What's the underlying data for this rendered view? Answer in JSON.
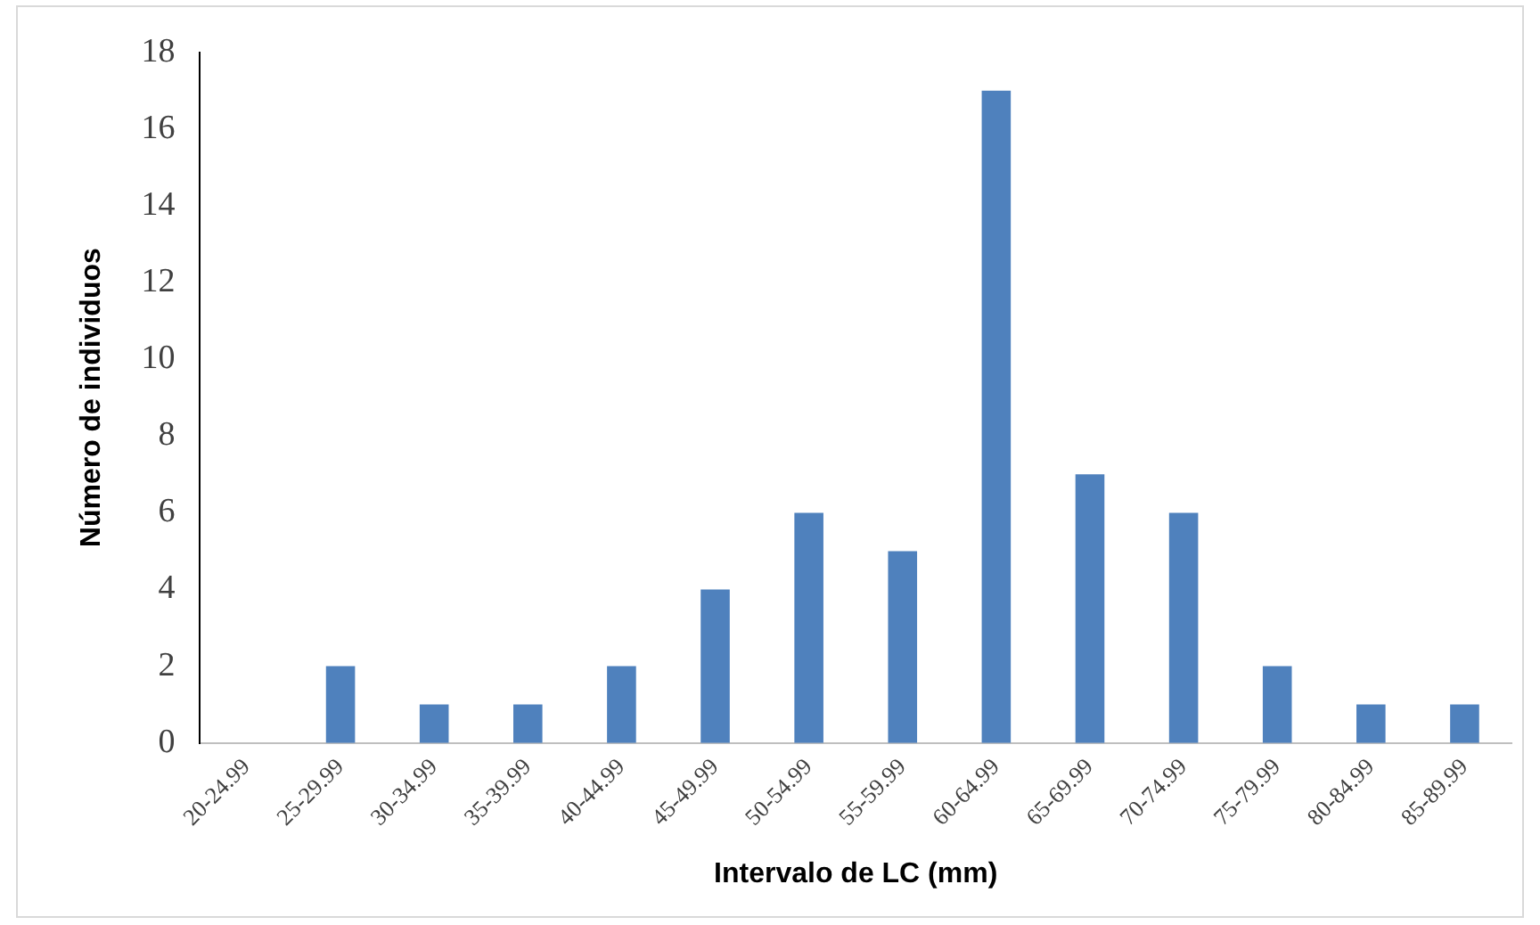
{
  "chart_data": {
    "type": "bar",
    "xlabel": "Intervalo de LC (mm)",
    "ylabel": "Número de individuos",
    "categories": [
      "20-24.99",
      "25-29.99",
      "30-34.99",
      "35-39.99",
      "40-44.99",
      "45-49.99",
      "50-54.99",
      "55-59.99",
      "60-64.99",
      "65-69.99",
      "70-74.99",
      "75-79.99",
      "80-84.99",
      "85-89.99"
    ],
    "values": [
      0,
      2,
      1,
      1,
      2,
      4,
      6,
      5,
      17,
      7,
      6,
      2,
      1,
      1
    ],
    "color": "#4f81bd",
    "ylim": [
      0,
      18
    ],
    "yticks": [
      0,
      2,
      4,
      6,
      8,
      10,
      12,
      14,
      16,
      18
    ],
    "grid": false,
    "legend": false
  }
}
